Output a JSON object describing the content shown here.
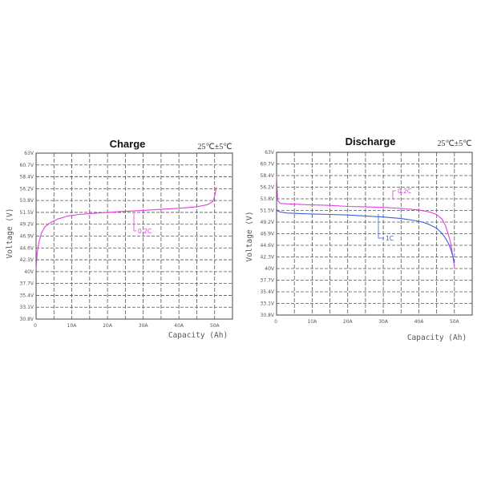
{
  "chart_data": [
    {
      "type": "line",
      "title": "Charge",
      "annotation": "25℃±5℃",
      "xlabel": "Capacity (Ah)",
      "ylabel": "Voltage (V)",
      "xlim": [
        0,
        55
      ],
      "ylim": [
        30.8,
        63
      ],
      "y_ticks": [
        "63V",
        "60.7V",
        "58.4V",
        "56.2V",
        "53.8V",
        "51.5V",
        "49.2V",
        "46.9V",
        "44.6V",
        "42.3V",
        "40V",
        "37.7V",
        "35.4V",
        "33.1V",
        "30.8V"
      ],
      "x_ticks": [
        "0",
        "10A",
        "20A",
        "30A",
        "40A",
        "50A"
      ],
      "x_tick_values": [
        0,
        10,
        20,
        30,
        40,
        50
      ],
      "grid": true,
      "series": [
        {
          "name": "0.2C",
          "color": "#e040e0",
          "x": [
            0,
            0.3,
            0.8,
            1.5,
            2.5,
            4,
            6,
            9,
            12,
            16,
            20,
            25,
            30,
            35,
            40,
            45,
            48,
            49.5,
            50,
            50.5
          ],
          "y": [
            40.5,
            43.5,
            45.8,
            47.5,
            48.7,
            49.5,
            50.2,
            50.8,
            51.1,
            51.3,
            51.5,
            51.7,
            51.9,
            52.1,
            52.3,
            52.6,
            53.0,
            53.6,
            54.6,
            56.4
          ]
        }
      ]
    },
    {
      "type": "line",
      "title": "Discharge",
      "annotation": "25℃±5℃",
      "xlabel": "Capacity (Ah)",
      "ylabel": "Voltage (V)",
      "xlim": [
        0,
        55
      ],
      "ylim": [
        30.8,
        63
      ],
      "y_ticks": [
        "63V",
        "60.7V",
        "58.4V",
        "56.2V",
        "53.8V",
        "51.5V",
        "49.2V",
        "46.9V",
        "44.6V",
        "42.3V",
        "40V",
        "37.7V",
        "35.4V",
        "33.1V",
        "30.8V"
      ],
      "x_ticks": [
        "0",
        "10A",
        "20A",
        "30A",
        "40A",
        "50A"
      ],
      "x_tick_values": [
        0,
        10,
        20,
        30,
        40,
        50
      ],
      "grid": true,
      "series": [
        {
          "name": "0.2C",
          "color": "#e040e0",
          "x": [
            0,
            0.3,
            1,
            3,
            6,
            10,
            15,
            20,
            25,
            30,
            35,
            40,
            43,
            45,
            46.5,
            47.5,
            48.2,
            48.8,
            49.2,
            49.6,
            50
          ],
          "y": [
            58.4,
            53.5,
            52.9,
            52.8,
            52.7,
            52.6,
            52.5,
            52.3,
            52.2,
            52.1,
            51.9,
            51.6,
            51.2,
            50.7,
            49.8,
            48.5,
            47.0,
            45.5,
            44.0,
            42.3,
            40.5
          ]
        },
        {
          "name": "1C",
          "color": "#4060d8",
          "x": [
            0,
            0.3,
            1,
            3,
            6,
            10,
            15,
            20,
            25,
            30,
            35,
            38,
            41,
            43,
            45,
            46.5,
            47.5,
            48.3,
            49,
            49.5,
            50
          ],
          "y": [
            51.8,
            51.4,
            51.2,
            51.0,
            50.9,
            50.8,
            50.7,
            50.6,
            50.4,
            50.2,
            49.9,
            49.6,
            49.2,
            48.7,
            48.0,
            47.0,
            46.0,
            45.0,
            43.8,
            42.6,
            41.2
          ]
        }
      ]
    }
  ]
}
